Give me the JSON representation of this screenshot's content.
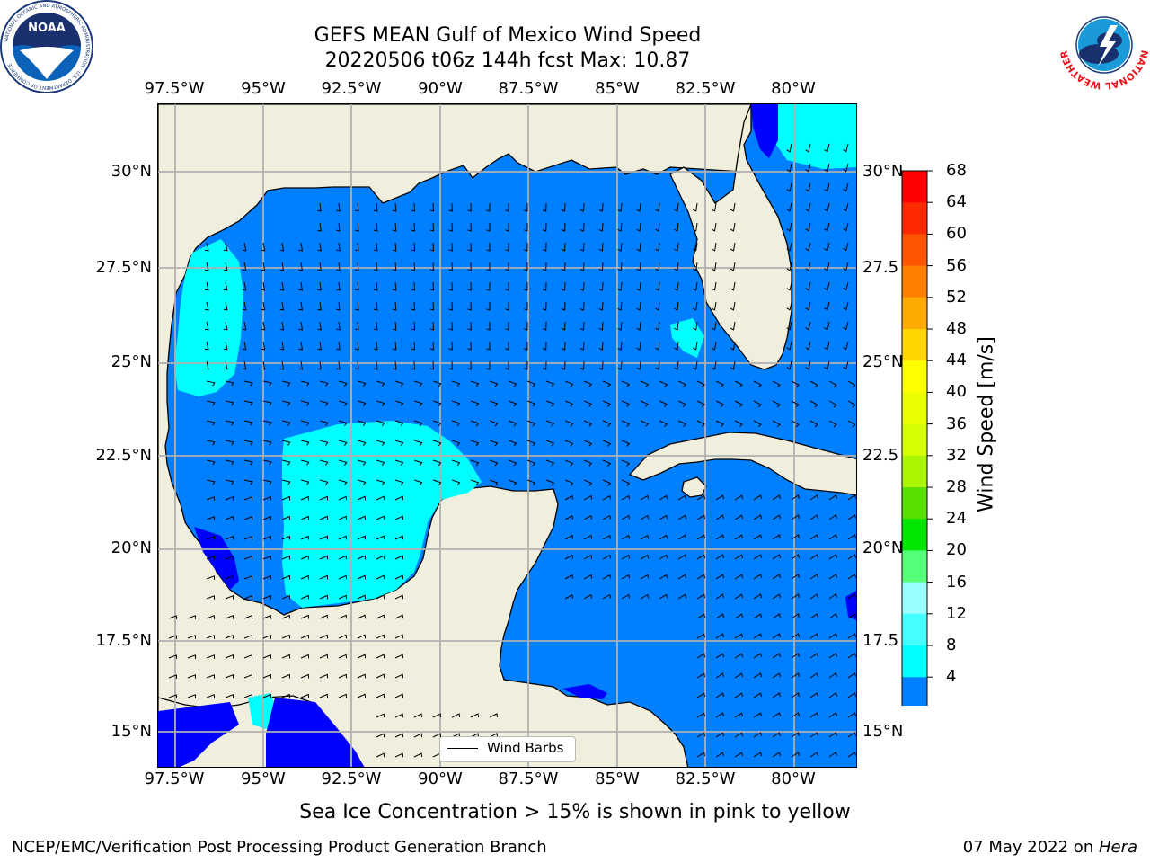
{
  "title": {
    "line1": "GEFS MEAN Gulf of Mexico Wind Speed",
    "line2": "20220506 t06z 144h fcst   Max: 10.87"
  },
  "lon_labels": [
    "97.5°W",
    "95°W",
    "92.5°W",
    "90°W",
    "87.5°W",
    "85°W",
    "82.5°W",
    "80°W"
  ],
  "lat_labels": [
    "30°N",
    "27.5°N",
    "25°N",
    "22.5°N",
    "20°N",
    "17.5°N",
    "15°N"
  ],
  "lat_labels_right": [
    "30°N",
    "27.5",
    "25°N",
    "22.5",
    "20°N",
    "17.5",
    "15°N"
  ],
  "colorbar": {
    "label": "Wind Speed [m/s]",
    "ticks": [
      "68",
      "64",
      "60",
      "56",
      "52",
      "48",
      "44",
      "40",
      "36",
      "32",
      "28",
      "24",
      "20",
      "16",
      "12",
      "8",
      "4"
    ],
    "colors": [
      "#ff0000",
      "#ff2a00",
      "#ff5500",
      "#ff8000",
      "#ffaa00",
      "#ffd500",
      "#ffff00",
      "#eaff00",
      "#d5ff00",
      "#aaf500",
      "#5ae000",
      "#00e600",
      "#55ff77",
      "#99ffff",
      "#44ffff",
      "#00ffff",
      "#0080ff"
    ],
    "under_color": "#0000ff",
    "colors_ocean": {
      "dark": "#0000ff",
      "mid": "#0080ff",
      "light": "#00ffff",
      "land": "#f0eedc"
    }
  },
  "legend": {
    "label": "Wind Barbs"
  },
  "note": "Sea Ice Concentration > 15% is shown in pink to yellow",
  "footer": {
    "left": "NCEP/EMC/Verification Post Processing Product Generation Branch",
    "right_prefix": "07 May 2022 on ",
    "right_machine": "Hera"
  },
  "logos": {
    "noaa": {
      "text": "NOAA",
      "ring": "NATIONAL OCEANIC AND ATMOSPHERIC ADMINISTRATION · U.S. DEPARTMENT OF COMMERCE"
    },
    "nws": {
      "ring": "NATIONAL WEATHER SERVICE"
    }
  }
}
